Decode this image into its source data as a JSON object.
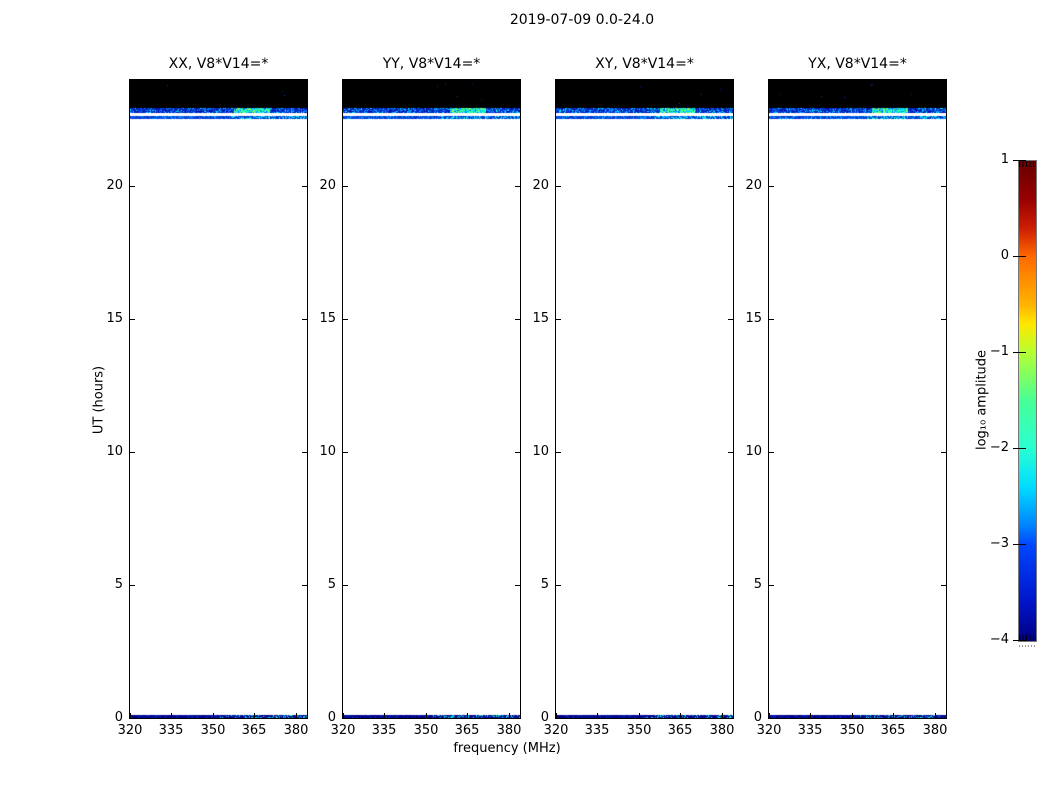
{
  "chart_data": {
    "type": "heatmap",
    "title": "2019-07-09 0.0-24.0",
    "xlabel": "frequency (MHz)",
    "ylabel": "UT (hours)",
    "x_range_mhz": [
      320,
      384
    ],
    "x_ticks": [
      320,
      335,
      350,
      365,
      380
    ],
    "y_range_hours": [
      0,
      24
    ],
    "y_ticks": [
      0,
      5,
      10,
      15,
      20
    ],
    "panels": [
      {
        "id": "xx",
        "title": "XX, V8*V14=*"
      },
      {
        "id": "yy",
        "title": "YY, V8*V14=*"
      },
      {
        "id": "xy",
        "title": "XY, V8*V14=*"
      },
      {
        "id": "yx",
        "title": "YX, V8*V14=*"
      }
    ],
    "colorbar": {
      "label": "log₁₀ amplitude",
      "ticks": [
        1,
        0,
        -1,
        -2,
        -3,
        -4
      ],
      "range": [
        -4,
        1
      ],
      "colormap": "jet-like",
      "colormap_stops": [
        {
          "pos": 0.0,
          "color": "#650000"
        },
        {
          "pos": 0.08,
          "color": "#990000"
        },
        {
          "pos": 0.14,
          "color": "#cc1e00"
        },
        {
          "pos": 0.2,
          "color": "#ff6a00"
        },
        {
          "pos": 0.3,
          "color": "#ffb400"
        },
        {
          "pos": 0.34,
          "color": "#ffe800"
        },
        {
          "pos": 0.4,
          "color": "#b4ff32"
        },
        {
          "pos": 0.5,
          "color": "#46ff96"
        },
        {
          "pos": 0.6,
          "color": "#28ffd2"
        },
        {
          "pos": 0.68,
          "color": "#00dcff"
        },
        {
          "pos": 0.76,
          "color": "#0082ff"
        },
        {
          "pos": 0.8,
          "color": "#0046ff"
        },
        {
          "pos": 0.92,
          "color": "#0014c8"
        },
        {
          "pos": 1.0,
          "color": "#000082"
        }
      ]
    },
    "features": {
      "background": "blank (white, no data)",
      "flagged_black_band_ut": [
        22.95,
        24.0
      ],
      "rfi_band_1_ut": [
        22.76,
        22.95
      ],
      "rfi_band_2_ut": [
        22.53,
        22.65
      ],
      "bottom_emission_ut": [
        0.0,
        0.12
      ],
      "rfi_palette_dim": [
        "#0013a8",
        "#0033dd",
        "#0066ff",
        "#00aaff",
        "#00ffd5"
      ],
      "rfi_palette_bright": [
        "#00ccff",
        "#00ffcc",
        "#44ff88",
        "#0066ff",
        "#aaff55"
      ],
      "band2_palette": [
        "#0030cc",
        "#0048e6",
        "#0066ff",
        "#00b4ff",
        "#00e6ff",
        "#2affcf"
      ],
      "bottom_palette": [
        "#000082",
        "#000f9e",
        "#0020b4",
        "#0030cc",
        "#00cfc0",
        "#2be0c0",
        "#00b4d8"
      ],
      "black_band_speckles": [
        "#001a80",
        "#002db3",
        "#0040cc"
      ]
    }
  }
}
